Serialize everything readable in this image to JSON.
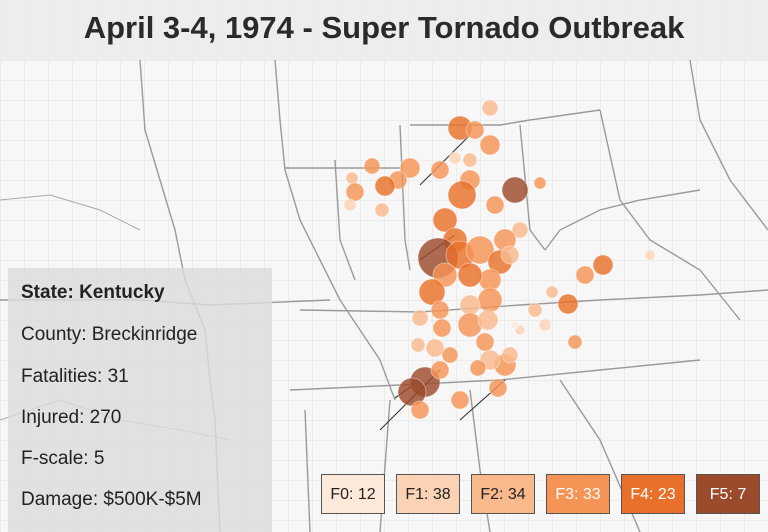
{
  "title": "April 3-4, 1974 - Super Tornado Outbreak",
  "info": {
    "state": "State: Kentucky",
    "county": "County: Breckinridge",
    "fatalities": "Fatalities: 31",
    "injured": "Injured: 270",
    "fscale": "F-scale: 5",
    "damage": "Damage: $500K-$5M"
  },
  "legend": [
    {
      "label": "F0: 12",
      "color": "#fde9d9",
      "text_color": "#222222"
    },
    {
      "label": "F1: 38",
      "color": "#fbd3b4",
      "text_color": "#222222"
    },
    {
      "label": "F2: 34",
      "color": "#f9b98c",
      "text_color": "#222222"
    },
    {
      "label": "F3: 33",
      "color": "#f59455",
      "text_color": "#ffffff"
    },
    {
      "label": "F4: 23",
      "color": "#e8702a",
      "text_color": "#ffffff"
    },
    {
      "label": "F5: 7",
      "color": "#9c4a2c",
      "text_color": "#ffffff"
    }
  ],
  "colors": {
    "f0": "#fde9d9",
    "f1": "#fbd3b4",
    "f2": "#f9b98c",
    "f3": "#f59455",
    "f4": "#e8702a",
    "f5": "#9c4a2c"
  }
}
